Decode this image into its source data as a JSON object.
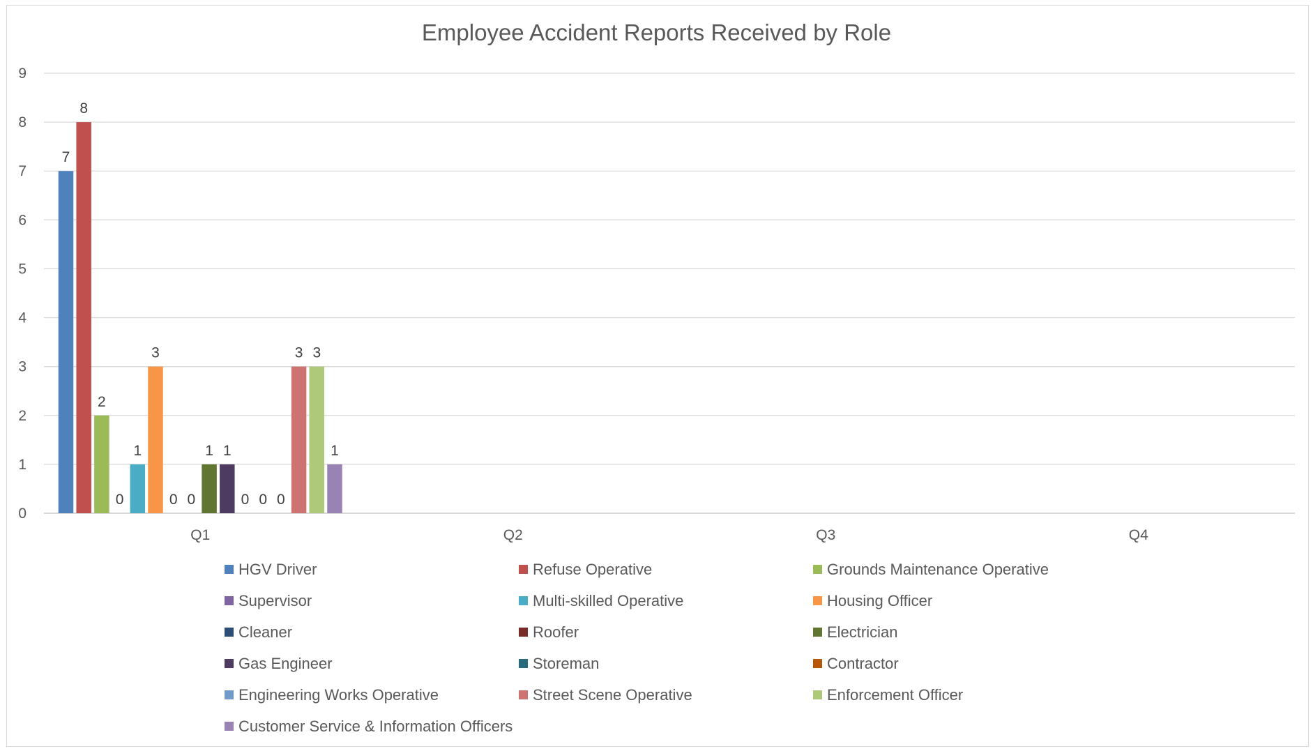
{
  "chart_data": {
    "type": "bar",
    "title": "Employee Accident Reports Received by Role",
    "xlabel": "",
    "ylabel": "",
    "categories": [
      "Q1",
      "Q2",
      "Q3",
      "Q4"
    ],
    "ylim": [
      0,
      9
    ],
    "yticks": [
      0,
      1,
      2,
      3,
      4,
      5,
      6,
      7,
      8,
      9
    ],
    "grid": true,
    "legend_position": "bottom",
    "series": [
      {
        "name": "HGV Driver",
        "color": "#4f81bd",
        "values": [
          7,
          null,
          null,
          null
        ]
      },
      {
        "name": "Refuse Operative",
        "color": "#c0504d",
        "values": [
          8,
          null,
          null,
          null
        ]
      },
      {
        "name": "Grounds Maintenance Operative",
        "color": "#9bbb59",
        "values": [
          2,
          null,
          null,
          null
        ]
      },
      {
        "name": "Supervisor",
        "color": "#8064a2",
        "values": [
          0,
          null,
          null,
          null
        ]
      },
      {
        "name": "Multi-skilled Operative",
        "color": "#4bacc6",
        "values": [
          1,
          null,
          null,
          null
        ]
      },
      {
        "name": "Housing Officer",
        "color": "#f79646",
        "values": [
          3,
          null,
          null,
          null
        ]
      },
      {
        "name": "Cleaner",
        "color": "#2c4d75",
        "values": [
          0,
          null,
          null,
          null
        ]
      },
      {
        "name": "Roofer",
        "color": "#772c2a",
        "values": [
          0,
          null,
          null,
          null
        ]
      },
      {
        "name": "Electrician",
        "color": "#5f7530",
        "values": [
          1,
          null,
          null,
          null
        ]
      },
      {
        "name": "Gas Engineer",
        "color": "#4d3b62",
        "values": [
          1,
          null,
          null,
          null
        ]
      },
      {
        "name": "Storeman",
        "color": "#276a7c",
        "values": [
          0,
          null,
          null,
          null
        ]
      },
      {
        "name": "Contractor",
        "color": "#b65708",
        "values": [
          0,
          null,
          null,
          null
        ]
      },
      {
        "name": "Engineering Works Operative",
        "color": "#729aca",
        "values": [
          0,
          null,
          null,
          null
        ]
      },
      {
        "name": "Street Scene Operative",
        "color": "#cd7371",
        "values": [
          3,
          null,
          null,
          null
        ]
      },
      {
        "name": "Enforcement Officer",
        "color": "#afc97a",
        "values": [
          3,
          null,
          null,
          null
        ]
      },
      {
        "name": "Customer Service & Information Officers",
        "color": "#9983b5",
        "values": [
          1,
          null,
          null,
          null
        ]
      }
    ]
  }
}
